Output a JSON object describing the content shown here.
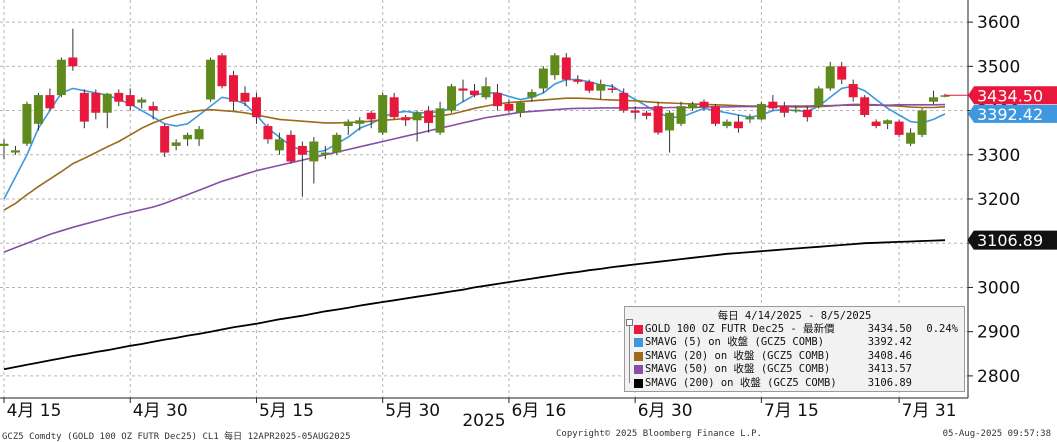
{
  "chart_data": {
    "type": "candlestick",
    "title": "GOLD 100 OZ FUTR Dec25",
    "ylim": [
      2750,
      3650
    ],
    "y_ticks": [
      2800,
      2900,
      3000,
      3100,
      3200,
      3300,
      3400,
      3500,
      3600
    ],
    "x_tick_labels": [
      "4月 15",
      "4月 30",
      "5月 15",
      "5月 30",
      "6月 16",
      "6月 30",
      "7月 15",
      "7月 31"
    ],
    "year_label": "2025",
    "grid": true,
    "legend_placement": "bottom-right",
    "colors": {
      "up": "#5f8a1c",
      "down": "#e8173c",
      "sma5": "#3d98e0",
      "sma20": "#9b6a1a",
      "sma50": "#8a4ea6",
      "sma200": "#000000",
      "flag_bg": "#e8173c",
      "flag_sma5": "#3d98e0",
      "flag_sma200": "#111111"
    },
    "candles": [
      {
        "o": 3320,
        "h": 3335,
        "l": 3290,
        "c": 3325
      },
      {
        "o": 3305,
        "h": 3320,
        "l": 3300,
        "c": 3310
      },
      {
        "o": 3325,
        "h": 3420,
        "l": 3320,
        "c": 3415
      },
      {
        "o": 3370,
        "h": 3440,
        "l": 3355,
        "c": 3435
      },
      {
        "o": 3435,
        "h": 3450,
        "l": 3400,
        "c": 3405
      },
      {
        "o": 3435,
        "h": 3520,
        "l": 3430,
        "c": 3515
      },
      {
        "o": 3520,
        "h": 3585,
        "l": 3490,
        "c": 3500
      },
      {
        "o": 3440,
        "h": 3448,
        "l": 3360,
        "c": 3375
      },
      {
        "o": 3440,
        "h": 3448,
        "l": 3380,
        "c": 3395
      },
      {
        "o": 3395,
        "h": 3440,
        "l": 3360,
        "c": 3438
      },
      {
        "o": 3440,
        "h": 3448,
        "l": 3410,
        "c": 3420
      },
      {
        "o": 3435,
        "h": 3450,
        "l": 3400,
        "c": 3410
      },
      {
        "o": 3418,
        "h": 3430,
        "l": 3405,
        "c": 3425
      },
      {
        "o": 3410,
        "h": 3420,
        "l": 3380,
        "c": 3400
      },
      {
        "o": 3365,
        "h": 3370,
        "l": 3295,
        "c": 3305
      },
      {
        "o": 3320,
        "h": 3335,
        "l": 3310,
        "c": 3328
      },
      {
        "o": 3335,
        "h": 3350,
        "l": 3320,
        "c": 3345
      },
      {
        "o": 3335,
        "h": 3365,
        "l": 3320,
        "c": 3358
      },
      {
        "o": 3425,
        "h": 3520,
        "l": 3420,
        "c": 3515
      },
      {
        "o": 3525,
        "h": 3530,
        "l": 3450,
        "c": 3455
      },
      {
        "o": 3480,
        "h": 3490,
        "l": 3400,
        "c": 3420
      },
      {
        "o": 3440,
        "h": 3455,
        "l": 3410,
        "c": 3420
      },
      {
        "o": 3430,
        "h": 3440,
        "l": 3370,
        "c": 3385
      },
      {
        "o": 3365,
        "h": 3370,
        "l": 3325,
        "c": 3335
      },
      {
        "o": 3310,
        "h": 3350,
        "l": 3300,
        "c": 3335
      },
      {
        "o": 3345,
        "h": 3355,
        "l": 3280,
        "c": 3285
      },
      {
        "o": 3320,
        "h": 3330,
        "l": 3205,
        "c": 3300
      },
      {
        "o": 3285,
        "h": 3340,
        "l": 3235,
        "c": 3330
      },
      {
        "o": 3300,
        "h": 3320,
        "l": 3290,
        "c": 3305
      },
      {
        "o": 3305,
        "h": 3350,
        "l": 3300,
        "c": 3345
      },
      {
        "o": 3365,
        "h": 3380,
        "l": 3345,
        "c": 3375
      },
      {
        "o": 3370,
        "h": 3385,
        "l": 3355,
        "c": 3378
      },
      {
        "o": 3395,
        "h": 3400,
        "l": 3360,
        "c": 3380
      },
      {
        "o": 3350,
        "h": 3440,
        "l": 3345,
        "c": 3435
      },
      {
        "o": 3430,
        "h": 3440,
        "l": 3380,
        "c": 3385
      },
      {
        "o": 3385,
        "h": 3390,
        "l": 3365,
        "c": 3378
      },
      {
        "o": 3378,
        "h": 3400,
        "l": 3330,
        "c": 3395
      },
      {
        "o": 3400,
        "h": 3410,
        "l": 3350,
        "c": 3372
      },
      {
        "o": 3350,
        "h": 3420,
        "l": 3345,
        "c": 3405
      },
      {
        "o": 3400,
        "h": 3460,
        "l": 3395,
        "c": 3455
      },
      {
        "o": 3450,
        "h": 3470,
        "l": 3420,
        "c": 3445
      },
      {
        "o": 3445,
        "h": 3460,
        "l": 3430,
        "c": 3435
      },
      {
        "o": 3430,
        "h": 3475,
        "l": 3425,
        "c": 3455
      },
      {
        "o": 3440,
        "h": 3460,
        "l": 3400,
        "c": 3410
      },
      {
        "o": 3415,
        "h": 3425,
        "l": 3395,
        "c": 3400
      },
      {
        "o": 3395,
        "h": 3420,
        "l": 3385,
        "c": 3418
      },
      {
        "o": 3430,
        "h": 3448,
        "l": 3420,
        "c": 3442
      },
      {
        "o": 3450,
        "h": 3500,
        "l": 3440,
        "c": 3495
      },
      {
        "o": 3480,
        "h": 3530,
        "l": 3470,
        "c": 3525
      },
      {
        "o": 3520,
        "h": 3530,
        "l": 3455,
        "c": 3470
      },
      {
        "o": 3470,
        "h": 3480,
        "l": 3460,
        "c": 3465
      },
      {
        "o": 3465,
        "h": 3470,
        "l": 3440,
        "c": 3445
      },
      {
        "o": 3445,
        "h": 3470,
        "l": 3425,
        "c": 3460
      },
      {
        "o": 3450,
        "h": 3460,
        "l": 3440,
        "c": 3448
      },
      {
        "o": 3440,
        "h": 3450,
        "l": 3395,
        "c": 3400
      },
      {
        "o": 3400,
        "h": 3410,
        "l": 3380,
        "c": 3395
      },
      {
        "o": 3395,
        "h": 3400,
        "l": 3380,
        "c": 3388
      },
      {
        "o": 3410,
        "h": 3420,
        "l": 3345,
        "c": 3350
      },
      {
        "o": 3355,
        "h": 3400,
        "l": 3305,
        "c": 3395
      },
      {
        "o": 3370,
        "h": 3420,
        "l": 3365,
        "c": 3410
      },
      {
        "o": 3405,
        "h": 3420,
        "l": 3400,
        "c": 3415
      },
      {
        "o": 3420,
        "h": 3425,
        "l": 3400,
        "c": 3408
      },
      {
        "o": 3410,
        "h": 3415,
        "l": 3365,
        "c": 3370
      },
      {
        "o": 3365,
        "h": 3380,
        "l": 3360,
        "c": 3375
      },
      {
        "o": 3375,
        "h": 3390,
        "l": 3350,
        "c": 3360
      },
      {
        "o": 3380,
        "h": 3392,
        "l": 3372,
        "c": 3385
      },
      {
        "o": 3380,
        "h": 3420,
        "l": 3378,
        "c": 3415
      },
      {
        "o": 3420,
        "h": 3435,
        "l": 3400,
        "c": 3405
      },
      {
        "o": 3410,
        "h": 3420,
        "l": 3385,
        "c": 3395
      },
      {
        "o": 3400,
        "h": 3410,
        "l": 3395,
        "c": 3402
      },
      {
        "o": 3402,
        "h": 3410,
        "l": 3375,
        "c": 3385
      },
      {
        "o": 3410,
        "h": 3455,
        "l": 3405,
        "c": 3450
      },
      {
        "o": 3450,
        "h": 3510,
        "l": 3445,
        "c": 3500
      },
      {
        "o": 3500,
        "h": 3510,
        "l": 3460,
        "c": 3470
      },
      {
        "o": 3460,
        "h": 3470,
        "l": 3420,
        "c": 3430
      },
      {
        "o": 3430,
        "h": 3435,
        "l": 3385,
        "c": 3390
      },
      {
        "o": 3375,
        "h": 3380,
        "l": 3360,
        "c": 3365
      },
      {
        "o": 3370,
        "h": 3380,
        "l": 3358,
        "c": 3378
      },
      {
        "o": 3375,
        "h": 3380,
        "l": 3340,
        "c": 3345
      },
      {
        "o": 3325,
        "h": 3360,
        "l": 3320,
        "c": 3350
      },
      {
        "o": 3345,
        "h": 3405,
        "l": 3340,
        "c": 3400
      },
      {
        "o": 3420,
        "h": 3445,
        "l": 3415,
        "c": 3430
      },
      {
        "o": 3432,
        "h": 3438,
        "l": 3430,
        "c": 3434.5
      }
    ],
    "series": [
      {
        "name": "SMAVG (5)",
        "values": [
          3200,
          3250,
          3300,
          3360,
          3400,
          3440,
          3450,
          3445,
          3440,
          3435,
          3425,
          3415,
          3400,
          3385,
          3370,
          3365,
          3370,
          3390,
          3410,
          3430,
          3425,
          3415,
          3390,
          3360,
          3340,
          3320,
          3310,
          3305,
          3310,
          3325,
          3340,
          3360,
          3370,
          3385,
          3395,
          3398,
          3395,
          3395,
          3398,
          3405,
          3420,
          3435,
          3440,
          3440,
          3432,
          3425,
          3430,
          3440,
          3460,
          3470,
          3470,
          3465,
          3458,
          3455,
          3440,
          3425,
          3410,
          3395,
          3385,
          3385,
          3395,
          3405,
          3400,
          3395,
          3390,
          3385,
          3390,
          3400,
          3402,
          3400,
          3398,
          3410,
          3430,
          3450,
          3455,
          3445,
          3425,
          3405,
          3390,
          3375,
          3372,
          3380,
          3392.42
        ]
      },
      {
        "name": "SMAVG (20)",
        "values": [
          3175,
          3190,
          3210,
          3228,
          3245,
          3262,
          3280,
          3292,
          3305,
          3318,
          3330,
          3345,
          3360,
          3372,
          3382,
          3390,
          3396,
          3400,
          3402,
          3400,
          3398,
          3395,
          3390,
          3385,
          3380,
          3378,
          3376,
          3374,
          3372,
          3372,
          3373,
          3374,
          3376,
          3378,
          3380,
          3382,
          3384,
          3386,
          3388,
          3392,
          3398,
          3405,
          3410,
          3415,
          3418,
          3420,
          3422,
          3424,
          3426,
          3428,
          3428,
          3427,
          3425,
          3424,
          3423,
          3422,
          3420,
          3418,
          3417,
          3416,
          3415,
          3414,
          3413,
          3412,
          3411,
          3410,
          3410,
          3409,
          3409,
          3408,
          3408,
          3409,
          3410,
          3412,
          3414,
          3414,
          3413,
          3411,
          3410,
          3408,
          3407,
          3407,
          3408.46
        ]
      },
      {
        "name": "SMAVG (50)",
        "values": [
          3080,
          3090,
          3100,
          3110,
          3120,
          3128,
          3136,
          3143,
          3150,
          3157,
          3164,
          3170,
          3176,
          3182,
          3190,
          3200,
          3210,
          3220,
          3230,
          3240,
          3248,
          3256,
          3264,
          3270,
          3276,
          3282,
          3288,
          3294,
          3300,
          3306,
          3312,
          3318,
          3324,
          3330,
          3336,
          3342,
          3348,
          3354,
          3360,
          3366,
          3372,
          3378,
          3384,
          3388,
          3392,
          3396,
          3398,
          3400,
          3402,
          3404,
          3405,
          3405,
          3406,
          3406,
          3406,
          3406,
          3406,
          3406,
          3407,
          3407,
          3407,
          3408,
          3408,
          3408,
          3409,
          3409,
          3409,
          3410,
          3410,
          3410,
          3410,
          3411,
          3411,
          3412,
          3412,
          3412,
          3412,
          3412,
          3413,
          3413,
          3413,
          3413,
          3413.57
        ]
      },
      {
        "name": "SMAVG (200)",
        "values": [
          2815,
          2820,
          2825,
          2830,
          2835,
          2840,
          2845,
          2849,
          2854,
          2858,
          2863,
          2868,
          2872,
          2877,
          2882,
          2886,
          2891,
          2895,
          2900,
          2905,
          2910,
          2914,
          2918,
          2923,
          2928,
          2932,
          2936,
          2941,
          2946,
          2950,
          2954,
          2959,
          2963,
          2967,
          2971,
          2975,
          2979,
          2983,
          2987,
          2991,
          2995,
          3000,
          3004,
          3008,
          3012,
          3016,
          3020,
          3024,
          3028,
          3032,
          3035,
          3039,
          3042,
          3046,
          3049,
          3052,
          3055,
          3058,
          3061,
          3064,
          3067,
          3070,
          3073,
          3076,
          3078,
          3080,
          3082,
          3084,
          3086,
          3088,
          3090,
          3092,
          3094,
          3096,
          3098,
          3100,
          3101,
          3102,
          3103,
          3104,
          3105,
          3106,
          3106.89
        ]
      }
    ],
    "last_flags": {
      "price": "3434.50",
      "sma5": "3392.42",
      "sma200": "3106.89"
    }
  },
  "legend": {
    "header": "每日 4/14/2025 - 8/5/2025",
    "rows": [
      {
        "label": "GOLD 100 OZ FUTR Dec25 - 最新價",
        "value": "3434.50",
        "pct": "0.24%",
        "color": "#e8173c"
      },
      {
        "label": "SMAVG (5)  on 收盤 (GCZ5 COMB)",
        "value": "3392.42",
        "color": "#3d98e0"
      },
      {
        "label": "SMAVG (20)  on 收盤 (GCZ5 COMB)",
        "value": "3408.46",
        "color": "#9b6a1a"
      },
      {
        "label": "SMAVG (50)  on 收盤 (GCZ5 COMB)",
        "value": "3413.57",
        "color": "#8a4ea6"
      },
      {
        "label": "SMAVG (200) on 收盤 (GCZ5 COMB)",
        "value": "3106.89",
        "color": "#000000"
      }
    ]
  },
  "footer": {
    "left": "GCZ5 Comdty (GOLD 100 OZ FUTR  Dec25) CL1  每日 12APR2025-05AUG2025",
    "center": "Copyright© 2025 Bloomberg Finance L.P.",
    "right": "05-Aug-2025 09:57:38"
  }
}
